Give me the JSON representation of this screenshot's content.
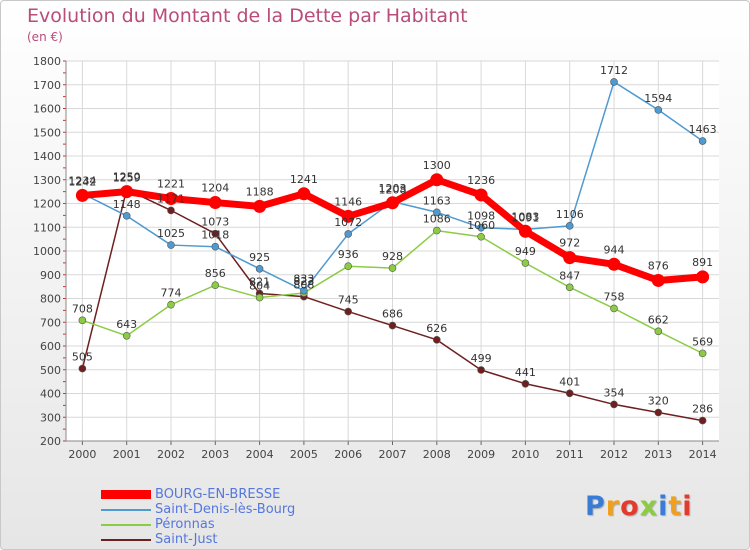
{
  "title": "Evolution du Montant de la Dette par Habitant",
  "unit": "(en €)",
  "chart_data": {
    "type": "line",
    "title": "Evolution du Montant de la Dette par Habitant",
    "ylabel": "(en €)",
    "xlabel": "",
    "ylim": [
      200,
      1800
    ],
    "yticks": [
      200,
      300,
      400,
      500,
      600,
      700,
      800,
      900,
      1000,
      1100,
      1200,
      1300,
      1400,
      1500,
      1600,
      1700,
      1800
    ],
    "grid": true,
    "legend_position": "bottom-left",
    "categories": [
      "2000",
      "2001",
      "2002",
      "2003",
      "2004",
      "2005",
      "2006",
      "2007",
      "2008",
      "2009",
      "2010",
      "2011",
      "2012",
      "2013",
      "2014"
    ],
    "series": [
      {
        "name": "BOURG-EN-BRESSE",
        "color": "#ff0000",
        "values": [
          1234,
          1250,
          1221,
          1204,
          1188,
          1241,
          1146,
          1203,
          1300,
          1236,
          1083,
          972,
          944,
          876,
          891
        ]
      },
      {
        "name": "Saint-Denis-lès-Bourg",
        "color": "#4e9ad1",
        "values": [
          1242,
          1148,
          1025,
          1018,
          925,
          833,
          1072,
          1208,
          1163,
          1098,
          1091,
          1106,
          1712,
          1594,
          1463
        ]
      },
      {
        "name": "Péronnas",
        "color": "#8ccc44",
        "values": [
          708,
          643,
          774,
          856,
          804,
          823,
          936,
          928,
          1086,
          1060,
          949,
          847,
          758,
          662,
          569
        ]
      },
      {
        "name": "Saint-Just",
        "color": "#6e2020",
        "values": [
          505,
          1259,
          1171,
          1073,
          821,
          808,
          745,
          686,
          626,
          499,
          441,
          401,
          354,
          320,
          286
        ]
      }
    ]
  },
  "logo": {
    "text": "Proxiti",
    "colors": [
      "#3a7bd5",
      "#f0a020",
      "#e23b2e",
      "#8ccc44",
      "#3a7bd5",
      "#f0a020",
      "#e23b2e"
    ]
  }
}
